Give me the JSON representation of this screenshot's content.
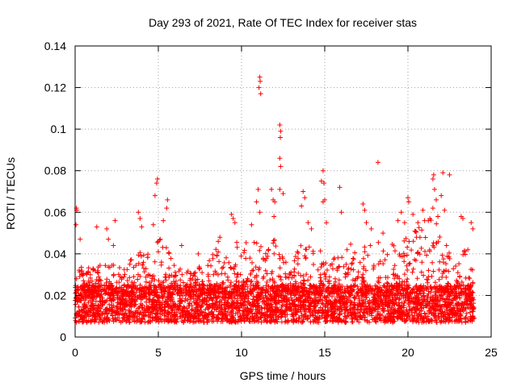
{
  "chart_data": {
    "type": "scatter",
    "title": "Day 293 of 2021, Rate Of TEC Index for receiver stas",
    "xlabel": "GPS time / hours",
    "ylabel": "ROTI / TECUs",
    "xlim": [
      0,
      25
    ],
    "ylim": [
      0,
      0.14
    ],
    "grid": true,
    "marker": "+",
    "series_color": "#ff0000",
    "x_ticks": [
      {
        "value": 0,
        "label": "0"
      },
      {
        "value": 5,
        "label": "5"
      },
      {
        "value": 10,
        "label": "10"
      },
      {
        "value": 15,
        "label": "15"
      },
      {
        "value": 20,
        "label": "20"
      },
      {
        "value": 25,
        "label": "25"
      }
    ],
    "y_ticks": [
      {
        "value": 0,
        "label": "0"
      },
      {
        "value": 0.02,
        "label": "0.02"
      },
      {
        "value": 0.04,
        "label": "0.04"
      },
      {
        "value": 0.06,
        "label": "0.06"
      },
      {
        "value": 0.08,
        "label": "0.08"
      },
      {
        "value": 0.1,
        "label": "0.1"
      },
      {
        "value": 0.12,
        "label": "0.12"
      },
      {
        "value": 0.14,
        "label": "0.14"
      }
    ],
    "time_range_hours": [
      0,
      24
    ],
    "baseline_roti": {
      "typical_min": 0.007,
      "typical_max": 0.025
    },
    "envelope": [
      [
        0.0,
        0.036
      ],
      [
        0.5,
        0.034
      ],
      [
        1.0,
        0.033
      ],
      [
        1.5,
        0.035
      ],
      [
        2.0,
        0.036
      ],
      [
        2.5,
        0.034
      ],
      [
        3.0,
        0.033
      ],
      [
        3.5,
        0.04
      ],
      [
        4.0,
        0.048
      ],
      [
        4.5,
        0.038
      ],
      [
        5.0,
        0.05
      ],
      [
        5.5,
        0.045
      ],
      [
        6.0,
        0.036
      ],
      [
        6.5,
        0.033
      ],
      [
        7.0,
        0.032
      ],
      [
        7.5,
        0.034
      ],
      [
        8.0,
        0.036
      ],
      [
        8.5,
        0.045
      ],
      [
        9.0,
        0.04
      ],
      [
        9.5,
        0.046
      ],
      [
        10.0,
        0.045
      ],
      [
        10.5,
        0.046
      ],
      [
        11.0,
        0.05
      ],
      [
        11.5,
        0.045
      ],
      [
        12.0,
        0.048
      ],
      [
        12.5,
        0.04
      ],
      [
        13.0,
        0.038
      ],
      [
        13.5,
        0.045
      ],
      [
        14.0,
        0.05
      ],
      [
        14.5,
        0.04
      ],
      [
        15.0,
        0.045
      ],
      [
        15.5,
        0.038
      ],
      [
        16.0,
        0.045
      ],
      [
        16.5,
        0.048
      ],
      [
        17.0,
        0.04
      ],
      [
        17.5,
        0.045
      ],
      [
        18.0,
        0.05
      ],
      [
        18.5,
        0.048
      ],
      [
        19.0,
        0.045
      ],
      [
        19.5,
        0.045
      ],
      [
        20.0,
        0.05
      ],
      [
        20.5,
        0.052
      ],
      [
        21.0,
        0.055
      ],
      [
        21.5,
        0.06
      ],
      [
        22.0,
        0.05
      ],
      [
        22.5,
        0.042
      ],
      [
        23.0,
        0.04
      ],
      [
        23.5,
        0.045
      ],
      [
        24.0,
        0.04
      ]
    ],
    "outliers": [
      {
        "x": 0.05,
        "y": 0.054
      },
      {
        "x": 0.1,
        "y": 0.061
      },
      {
        "x": 0.08,
        "y": 0.062
      },
      {
        "x": 0.3,
        "y": 0.047
      },
      {
        "x": 1.3,
        "y": 0.053
      },
      {
        "x": 1.9,
        "y": 0.052
      },
      {
        "x": 2.4,
        "y": 0.056
      },
      {
        "x": 2.0,
        "y": 0.047
      },
      {
        "x": 2.3,
        "y": 0.044
      },
      {
        "x": 3.8,
        "y": 0.06
      },
      {
        "x": 3.9,
        "y": 0.057
      },
      {
        "x": 4.0,
        "y": 0.053
      },
      {
        "x": 4.7,
        "y": 0.054
      },
      {
        "x": 4.8,
        "y": 0.068
      },
      {
        "x": 4.9,
        "y": 0.074
      },
      {
        "x": 4.95,
        "y": 0.076
      },
      {
        "x": 5.3,
        "y": 0.056
      },
      {
        "x": 5.5,
        "y": 0.062
      },
      {
        "x": 5.55,
        "y": 0.066
      },
      {
        "x": 6.4,
        "y": 0.044
      },
      {
        "x": 7.4,
        "y": 0.04
      },
      {
        "x": 8.6,
        "y": 0.046
      },
      {
        "x": 8.7,
        "y": 0.048
      },
      {
        "x": 9.4,
        "y": 0.059
      },
      {
        "x": 9.5,
        "y": 0.057
      },
      {
        "x": 9.6,
        "y": 0.055
      },
      {
        "x": 10.6,
        "y": 0.054
      },
      {
        "x": 10.9,
        "y": 0.065
      },
      {
        "x": 11.05,
        "y": 0.12
      },
      {
        "x": 11.1,
        "y": 0.125
      },
      {
        "x": 11.12,
        "y": 0.123
      },
      {
        "x": 11.15,
        "y": 0.117
      },
      {
        "x": 11.0,
        "y": 0.071
      },
      {
        "x": 11.1,
        "y": 0.06
      },
      {
        "x": 11.8,
        "y": 0.071
      },
      {
        "x": 11.9,
        "y": 0.066
      },
      {
        "x": 11.95,
        "y": 0.058
      },
      {
        "x": 12.3,
        "y": 0.102
      },
      {
        "x": 12.35,
        "y": 0.099
      },
      {
        "x": 12.33,
        "y": 0.096
      },
      {
        "x": 12.3,
        "y": 0.086
      },
      {
        "x": 12.35,
        "y": 0.082
      },
      {
        "x": 12.3,
        "y": 0.071
      },
      {
        "x": 12.5,
        "y": 0.069
      },
      {
        "x": 12.0,
        "y": 0.065
      },
      {
        "x": 13.7,
        "y": 0.07
      },
      {
        "x": 13.8,
        "y": 0.067
      },
      {
        "x": 13.6,
        "y": 0.063
      },
      {
        "x": 14.0,
        "y": 0.055
      },
      {
        "x": 14.2,
        "y": 0.052
      },
      {
        "x": 14.9,
        "y": 0.08
      },
      {
        "x": 14.8,
        "y": 0.075
      },
      {
        "x": 14.95,
        "y": 0.074
      },
      {
        "x": 15.0,
        "y": 0.066
      },
      {
        "x": 14.9,
        "y": 0.065
      },
      {
        "x": 15.1,
        "y": 0.055
      },
      {
        "x": 16.0,
        "y": 0.06
      },
      {
        "x": 15.9,
        "y": 0.072
      },
      {
        "x": 17.3,
        "y": 0.064
      },
      {
        "x": 17.4,
        "y": 0.061
      },
      {
        "x": 17.5,
        "y": 0.055
      },
      {
        "x": 17.8,
        "y": 0.052
      },
      {
        "x": 18.2,
        "y": 0.084
      },
      {
        "x": 18.5,
        "y": 0.05
      },
      {
        "x": 19.4,
        "y": 0.056
      },
      {
        "x": 19.6,
        "y": 0.06
      },
      {
        "x": 19.8,
        "y": 0.055
      },
      {
        "x": 20.0,
        "y": 0.067
      },
      {
        "x": 20.05,
        "y": 0.065
      },
      {
        "x": 20.3,
        "y": 0.059
      },
      {
        "x": 20.6,
        "y": 0.055
      },
      {
        "x": 20.9,
        "y": 0.061
      },
      {
        "x": 21.0,
        "y": 0.056
      },
      {
        "x": 21.5,
        "y": 0.076
      },
      {
        "x": 21.55,
        "y": 0.078
      },
      {
        "x": 21.6,
        "y": 0.071
      },
      {
        "x": 21.7,
        "y": 0.066
      },
      {
        "x": 21.5,
        "y": 0.062
      },
      {
        "x": 21.8,
        "y": 0.058
      },
      {
        "x": 22.1,
        "y": 0.079
      },
      {
        "x": 22.5,
        "y": 0.078
      },
      {
        "x": 22.0,
        "y": 0.068
      },
      {
        "x": 22.2,
        "y": 0.061
      },
      {
        "x": 23.2,
        "y": 0.058
      },
      {
        "x": 23.3,
        "y": 0.057
      },
      {
        "x": 23.8,
        "y": 0.055
      },
      {
        "x": 23.9,
        "y": 0.052
      },
      {
        "x": 23.6,
        "y": 0.042
      }
    ]
  }
}
